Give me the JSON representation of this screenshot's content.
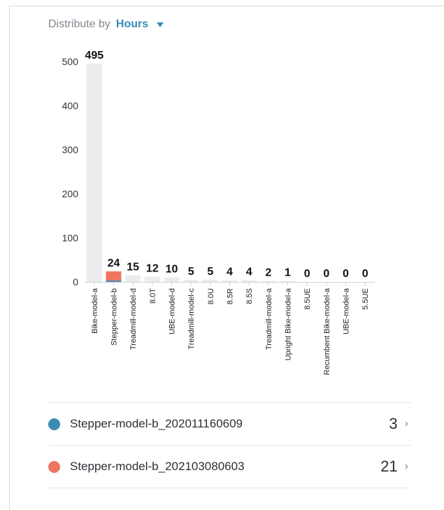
{
  "header": {
    "distribute_label": "Distribute by",
    "distribute_value": "Hours",
    "caret_icon": "chevron-down-icon",
    "accent_color": "#3b8bb4"
  },
  "chart_data": {
    "type": "bar",
    "categories": [
      "Bike-model-a",
      "Stepper-model-b",
      "Treadmill-model-d",
      "8.0T",
      "UBE-model-d",
      "Treadmill-model-c",
      "8.0U",
      "8.5R",
      "8.5S",
      "Treadmill-model-a",
      "Upright Bike-model-a",
      "8.5UE",
      "Recumbent Bike-model-a",
      "UBE-model-a",
      "5.5UE"
    ],
    "values": [
      495,
      24,
      15,
      12,
      10,
      5,
      5,
      4,
      4,
      2,
      1,
      0,
      0,
      0,
      0
    ],
    "data_labels": [
      "495",
      "24",
      "15",
      "12",
      "10",
      "5",
      "5",
      "4",
      "4",
      "2",
      "1",
      "0",
      "0",
      "0",
      "0"
    ],
    "series": [
      {
        "name": "Stepper-model-b_202011160609",
        "color": "#3b8bb4",
        "values": [
          0,
          3,
          0,
          0,
          0,
          0,
          0,
          0,
          0,
          0,
          0,
          0,
          0,
          0,
          0
        ]
      },
      {
        "name": "Stepper-model-b_202103080603",
        "color": "#ef7563",
        "values": [
          0,
          21,
          0,
          0,
          0,
          0,
          0,
          0,
          0,
          0,
          0,
          0,
          0,
          0,
          0
        ]
      }
    ],
    "default_bar_color": "#eaeced",
    "yticks": [
      "0",
      "100",
      "200",
      "300",
      "400",
      "500"
    ],
    "ytick_values": [
      0,
      100,
      200,
      300,
      400,
      500
    ],
    "ylim": [
      0,
      500
    ],
    "grid": false
  },
  "legend_list": [
    {
      "label": "Stepper-model-b_202011160609",
      "value": "3",
      "color": "#3b8bb4",
      "chevron": "›"
    },
    {
      "label": "Stepper-model-b_202103080603",
      "value": "21",
      "color": "#ef7563",
      "chevron": "›"
    }
  ]
}
